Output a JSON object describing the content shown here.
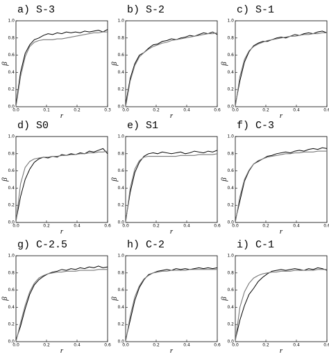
{
  "chart_data": [
    {
      "type": "line",
      "title": "a) S-3",
      "x_label": "r",
      "y_label": "β",
      "x": [
        0,
        0.015,
        0.03,
        0.045,
        0.06,
        0.075,
        0.09,
        0.105,
        0.12,
        0.135,
        0.15,
        0.165,
        0.18,
        0.195,
        0.21,
        0.225,
        0.24,
        0.255,
        0.27,
        0.285,
        0.3
      ],
      "series": [
        {
          "color": "#000000",
          "values": [
            0.02,
            0.4,
            0.62,
            0.72,
            0.78,
            0.8,
            0.83,
            0.85,
            0.84,
            0.86,
            0.85,
            0.87,
            0.86,
            0.87,
            0.86,
            0.88,
            0.87,
            0.88,
            0.89,
            0.87,
            0.9
          ]
        },
        {
          "color": "#777777",
          "values": [
            0,
            0.35,
            0.58,
            0.7,
            0.75,
            0.77,
            0.78,
            0.78,
            0.78,
            0.79,
            0.79,
            0.8,
            0.81,
            0.82,
            0.83,
            0.84,
            0.85,
            0.86,
            0.86,
            0.87,
            0.87
          ]
        }
      ],
      "xlim": [
        0,
        0.3
      ],
      "xticks": [
        {
          "value": 0,
          "label": "0.0"
        },
        0.1,
        0.2,
        0.3
      ],
      "ylim": [
        0,
        1
      ],
      "yticks": [
        {
          "value": 0,
          "label": "0.0"
        },
        0.2,
        0.4,
        0.6,
        0.8,
        {
          "value": 1,
          "label": "1.0"
        }
      ]
    },
    {
      "type": "line",
      "title": "b) S-2",
      "x_label": "r",
      "y_label": "β",
      "x": [
        0,
        0.03,
        0.06,
        0.09,
        0.12,
        0.15,
        0.18,
        0.21,
        0.24,
        0.27,
        0.3,
        0.33,
        0.36,
        0.39,
        0.42,
        0.45,
        0.48,
        0.51,
        0.54,
        0.57,
        0.6
      ],
      "series": [
        {
          "color": "#000000",
          "values": [
            0.03,
            0.33,
            0.5,
            0.6,
            0.63,
            0.68,
            0.72,
            0.73,
            0.76,
            0.77,
            0.79,
            0.78,
            0.8,
            0.81,
            0.83,
            0.82,
            0.84,
            0.86,
            0.85,
            0.87,
            0.84
          ]
        },
        {
          "color": "#777777",
          "values": [
            0,
            0.3,
            0.48,
            0.58,
            0.63,
            0.67,
            0.7,
            0.72,
            0.74,
            0.75,
            0.77,
            0.78,
            0.79,
            0.8,
            0.81,
            0.82,
            0.83,
            0.84,
            0.85,
            0.85,
            0.86
          ]
        }
      ],
      "xlim": [
        0,
        0.6
      ],
      "xticks": [
        {
          "value": 0,
          "label": "0.0"
        },
        0.2,
        0.4,
        0.6
      ],
      "ylim": [
        0,
        1
      ],
      "yticks": [
        {
          "value": 0,
          "label": "0.0"
        },
        0.2,
        0.4,
        0.6,
        0.8,
        {
          "value": 1,
          "label": "1.0"
        }
      ]
    },
    {
      "type": "line",
      "title": "c) S-1",
      "x_label": "r",
      "y_label": "β",
      "x": [
        0,
        0.03,
        0.06,
        0.09,
        0.12,
        0.15,
        0.18,
        0.21,
        0.24,
        0.27,
        0.3,
        0.33,
        0.36,
        0.39,
        0.42,
        0.45,
        0.48,
        0.51,
        0.54,
        0.57,
        0.6
      ],
      "series": [
        {
          "color": "#000000",
          "values": [
            0.02,
            0.3,
            0.52,
            0.64,
            0.71,
            0.74,
            0.76,
            0.76,
            0.78,
            0.8,
            0.81,
            0.8,
            0.82,
            0.84,
            0.83,
            0.85,
            0.86,
            0.85,
            0.87,
            0.88,
            0.86
          ]
        },
        {
          "color": "#777777",
          "values": [
            0,
            0.35,
            0.55,
            0.65,
            0.7,
            0.73,
            0.75,
            0.77,
            0.78,
            0.79,
            0.8,
            0.81,
            0.82,
            0.82,
            0.83,
            0.84,
            0.84,
            0.85,
            0.85,
            0.86,
            0.86
          ]
        }
      ],
      "xlim": [
        0,
        0.6
      ],
      "xticks": [
        {
          "value": 0,
          "label": "0.0"
        },
        0.2,
        0.4,
        0.6
      ],
      "ylim": [
        0,
        1
      ],
      "yticks": [
        {
          "value": 0,
          "label": "0.0"
        },
        0.2,
        0.4,
        0.6,
        0.8,
        {
          "value": 1,
          "label": "1.0"
        }
      ]
    },
    {
      "type": "line",
      "title": "d) S0",
      "x_label": "r",
      "y_label": "β",
      "x": [
        0,
        0.03,
        0.06,
        0.09,
        0.12,
        0.15,
        0.18,
        0.21,
        0.24,
        0.27,
        0.3,
        0.33,
        0.36,
        0.39,
        0.42,
        0.45,
        0.48,
        0.51,
        0.54,
        0.57,
        0.6
      ],
      "series": [
        {
          "color": "#000000",
          "values": [
            0.02,
            0.3,
            0.5,
            0.62,
            0.7,
            0.74,
            0.76,
            0.75,
            0.77,
            0.76,
            0.79,
            0.78,
            0.8,
            0.79,
            0.81,
            0.8,
            0.83,
            0.82,
            0.84,
            0.86,
            0.8
          ]
        },
        {
          "color": "#777777",
          "values": [
            0,
            0.45,
            0.64,
            0.71,
            0.74,
            0.75,
            0.76,
            0.76,
            0.77,
            0.77,
            0.78,
            0.78,
            0.79,
            0.79,
            0.8,
            0.8,
            0.81,
            0.81,
            0.82,
            0.82,
            0.83
          ]
        }
      ],
      "xlim": [
        0,
        0.6
      ],
      "xticks": [
        {
          "value": 0,
          "label": "0.0"
        },
        0.2,
        0.4,
        0.6
      ],
      "ylim": [
        0,
        1
      ],
      "yticks": [
        {
          "value": 0,
          "label": "0.0"
        },
        0.2,
        0.4,
        0.6,
        0.8,
        {
          "value": 1,
          "label": "1.0"
        }
      ]
    },
    {
      "type": "line",
      "title": "e) S1",
      "x_label": "r",
      "y_label": "β",
      "x": [
        0,
        0.03,
        0.06,
        0.09,
        0.12,
        0.15,
        0.18,
        0.21,
        0.24,
        0.27,
        0.3,
        0.33,
        0.36,
        0.39,
        0.42,
        0.45,
        0.48,
        0.51,
        0.54,
        0.57,
        0.6
      ],
      "series": [
        {
          "color": "#000000",
          "values": [
            0.02,
            0.35,
            0.58,
            0.7,
            0.77,
            0.8,
            0.81,
            0.8,
            0.82,
            0.81,
            0.8,
            0.81,
            0.82,
            0.8,
            0.81,
            0.83,
            0.82,
            0.81,
            0.83,
            0.82,
            0.84
          ]
        },
        {
          "color": "#777777",
          "values": [
            0,
            0.4,
            0.62,
            0.72,
            0.76,
            0.77,
            0.77,
            0.77,
            0.77,
            0.77,
            0.77,
            0.77,
            0.78,
            0.78,
            0.78,
            0.78,
            0.79,
            0.79,
            0.79,
            0.79,
            0.8
          ]
        }
      ],
      "xlim": [
        0,
        0.6
      ],
      "xticks": [
        {
          "value": 0,
          "label": "0.0"
        },
        0.2,
        0.4,
        0.6
      ],
      "ylim": [
        0,
        1
      ],
      "yticks": [
        {
          "value": 0,
          "label": "0.0"
        },
        0.2,
        0.4,
        0.6,
        0.8,
        {
          "value": 1,
          "label": "1.0"
        }
      ]
    },
    {
      "type": "line",
      "title": "f) C-3",
      "x_label": "r",
      "y_label": "β",
      "x": [
        0,
        0.03,
        0.06,
        0.09,
        0.12,
        0.15,
        0.18,
        0.21,
        0.24,
        0.27,
        0.3,
        0.33,
        0.36,
        0.39,
        0.42,
        0.45,
        0.48,
        0.51,
        0.54,
        0.57,
        0.6
      ],
      "series": [
        {
          "color": "#000000",
          "values": [
            0.02,
            0.25,
            0.48,
            0.6,
            0.68,
            0.71,
            0.74,
            0.77,
            0.78,
            0.8,
            0.81,
            0.82,
            0.81,
            0.83,
            0.84,
            0.83,
            0.85,
            0.86,
            0.85,
            0.87,
            0.86
          ]
        },
        {
          "color": "#777777",
          "values": [
            0,
            0.3,
            0.5,
            0.61,
            0.68,
            0.72,
            0.74,
            0.76,
            0.77,
            0.78,
            0.79,
            0.8,
            0.8,
            0.81,
            0.81,
            0.82,
            0.82,
            0.82,
            0.83,
            0.83,
            0.83
          ]
        }
      ],
      "xlim": [
        0,
        0.6
      ],
      "xticks": [
        {
          "value": 0,
          "label": "0.0"
        },
        0.2,
        0.4,
        0.6
      ],
      "ylim": [
        0,
        1
      ],
      "yticks": [
        {
          "value": 0,
          "label": "0.0"
        },
        0.2,
        0.4,
        0.6,
        0.8,
        {
          "value": 1,
          "label": "1.0"
        }
      ]
    },
    {
      "type": "line",
      "title": "g) C-2.5",
      "x_label": "r",
      "y_label": "β",
      "x": [
        0,
        0.03,
        0.06,
        0.09,
        0.12,
        0.15,
        0.18,
        0.21,
        0.24,
        0.27,
        0.3,
        0.33,
        0.36,
        0.39,
        0.42,
        0.45,
        0.48,
        0.51,
        0.54,
        0.57,
        0.6
      ],
      "series": [
        {
          "color": "#000000",
          "values": [
            0.02,
            0.18,
            0.38,
            0.55,
            0.66,
            0.72,
            0.76,
            0.79,
            0.81,
            0.82,
            0.84,
            0.83,
            0.85,
            0.84,
            0.86,
            0.85,
            0.87,
            0.86,
            0.88,
            0.86,
            0.87
          ]
        },
        {
          "color": "#777777",
          "values": [
            0,
            0.22,
            0.42,
            0.58,
            0.68,
            0.74,
            0.77,
            0.79,
            0.8,
            0.81,
            0.81,
            0.82,
            0.82,
            0.82,
            0.83,
            0.83,
            0.83,
            0.83,
            0.84,
            0.84,
            0.84
          ]
        }
      ],
      "xlim": [
        0,
        0.6
      ],
      "xticks": [
        {
          "value": 0,
          "label": "0.0"
        },
        0.2,
        0.4,
        0.6
      ],
      "ylim": [
        0,
        1
      ],
      "yticks": [
        {
          "value": 0,
          "label": "0.0"
        },
        0.2,
        0.4,
        0.6,
        0.8,
        {
          "value": 1,
          "label": "1.0"
        }
      ]
    },
    {
      "type": "line",
      "title": "h) C-2",
      "x_label": "r",
      "y_label": "β",
      "x": [
        0,
        0.03,
        0.06,
        0.09,
        0.12,
        0.15,
        0.18,
        0.21,
        0.24,
        0.27,
        0.3,
        0.33,
        0.36,
        0.39,
        0.42,
        0.45,
        0.48,
        0.51,
        0.54,
        0.57,
        0.6
      ],
      "series": [
        {
          "color": "#000000",
          "values": [
            0.02,
            0.25,
            0.48,
            0.63,
            0.72,
            0.78,
            0.8,
            0.82,
            0.83,
            0.84,
            0.83,
            0.85,
            0.84,
            0.85,
            0.84,
            0.85,
            0.86,
            0.85,
            0.86,
            0.85,
            0.86
          ]
        },
        {
          "color": "#777777",
          "values": [
            0,
            0.3,
            0.52,
            0.65,
            0.73,
            0.77,
            0.8,
            0.81,
            0.82,
            0.82,
            0.83,
            0.83,
            0.83,
            0.83,
            0.84,
            0.84,
            0.84,
            0.84,
            0.84,
            0.84,
            0.84
          ]
        }
      ],
      "xlim": [
        0,
        0.6
      ],
      "xticks": [
        {
          "value": 0,
          "label": "0.0"
        },
        0.2,
        0.4,
        0.6
      ],
      "ylim": [
        0,
        1
      ],
      "yticks": [
        {
          "value": 0,
          "label": "0.0"
        },
        0.2,
        0.4,
        0.6,
        0.8,
        {
          "value": 1,
          "label": "1.0"
        }
      ]
    },
    {
      "type": "line",
      "title": "i) C-1",
      "x_label": "r",
      "y_label": "β",
      "x": [
        0,
        0.03,
        0.06,
        0.09,
        0.12,
        0.15,
        0.18,
        0.21,
        0.24,
        0.27,
        0.3,
        0.33,
        0.36,
        0.39,
        0.42,
        0.45,
        0.48,
        0.51,
        0.54,
        0.57,
        0.6
      ],
      "series": [
        {
          "color": "#000000",
          "values": [
            0.02,
            0.25,
            0.42,
            0.55,
            0.62,
            0.7,
            0.75,
            0.79,
            0.82,
            0.83,
            0.84,
            0.83,
            0.84,
            0.85,
            0.84,
            0.83,
            0.85,
            0.84,
            0.86,
            0.85,
            0.83
          ]
        },
        {
          "color": "#777777",
          "values": [
            0,
            0.4,
            0.58,
            0.68,
            0.74,
            0.77,
            0.79,
            0.8,
            0.81,
            0.81,
            0.82,
            0.82,
            0.82,
            0.83,
            0.83,
            0.83,
            0.83,
            0.83,
            0.84,
            0.84,
            0.84
          ]
        }
      ],
      "xlim": [
        0,
        0.6
      ],
      "xticks": [
        {
          "value": 0,
          "label": "0.0"
        },
        0.2,
        0.4,
        0.6
      ],
      "ylim": [
        0,
        1
      ],
      "yticks": [
        {
          "value": 0,
          "label": "0.0"
        },
        0.2,
        0.4,
        0.6,
        0.8,
        {
          "value": 1,
          "label": "1.0"
        }
      ]
    }
  ]
}
